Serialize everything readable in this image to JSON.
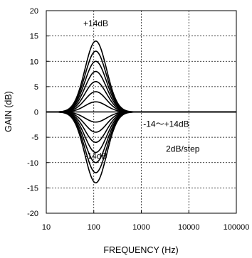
{
  "chart_data": {
    "type": "line",
    "xlabel": "FREQUENCY (Hz)",
    "ylabel": "GAIN (dB)",
    "x_scale": "log",
    "xlim": [
      10,
      100000
    ],
    "ylim": [
      -20,
      20
    ],
    "grid": true,
    "x_ticks": [
      "10",
      "100",
      "1000",
      "10000",
      "100000"
    ],
    "y_ticks": [
      "20",
      "15",
      "10",
      "5",
      "0",
      "-5",
      "-10",
      "-15",
      "-20"
    ],
    "center_frequency_hz": 110,
    "series_peak_gains_db": [
      14,
      12,
      10,
      8,
      6,
      4,
      2,
      0,
      -2,
      -4,
      -6,
      -8,
      -10,
      -12,
      -14
    ],
    "annotations": [
      {
        "text": "+14dB",
        "x": 110,
        "y": 17.5
      },
      {
        "text": "-14dB",
        "x": 110,
        "y": -8.7
      },
      {
        "text": "-14～+14dB",
        "x": 1100,
        "y": -2.4
      },
      {
        "text": "2dB/step",
        "x": 3300,
        "y": -7.3
      }
    ]
  }
}
